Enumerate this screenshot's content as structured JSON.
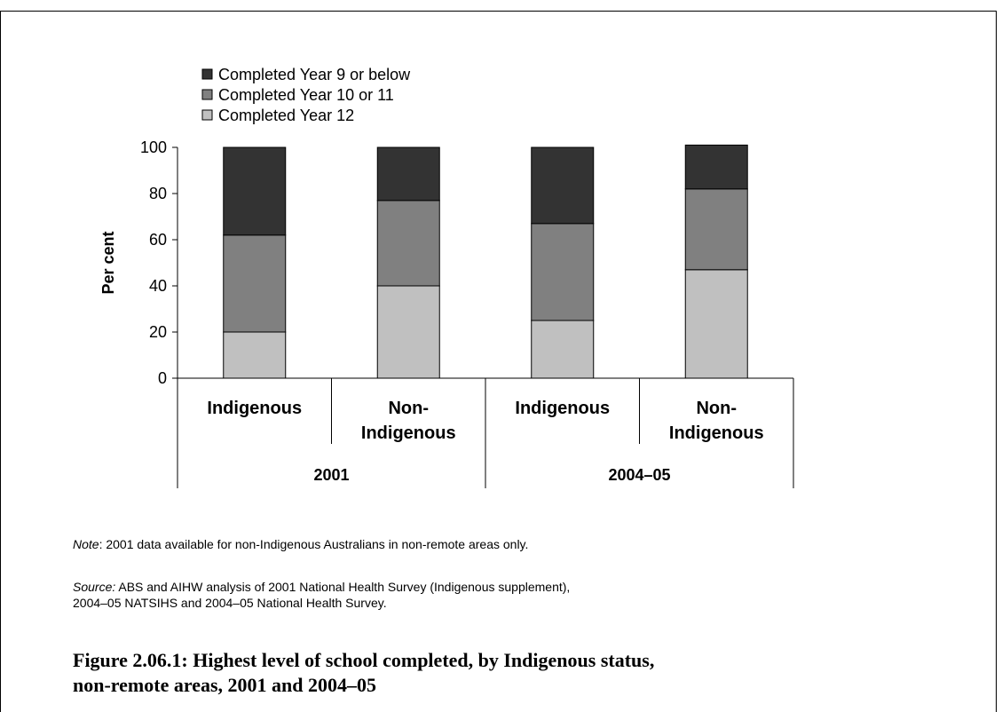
{
  "chart_data": {
    "type": "bar",
    "stacked": true,
    "ylabel": "Per cent",
    "ylim": [
      0,
      100
    ],
    "yticks": [
      0,
      20,
      40,
      60,
      80,
      100
    ],
    "categories": [
      {
        "label": "Indigenous",
        "group": "2001"
      },
      {
        "label": "Non-\nIndigenous",
        "group": "2001"
      },
      {
        "label": "Indigenous",
        "group": "2004–05"
      },
      {
        "label": "Non-\nIndigenous",
        "group": "2004–05"
      }
    ],
    "groups": [
      "2001",
      "2004–05"
    ],
    "series": [
      {
        "name": "Completed Year 12",
        "color": "#c0c0c0",
        "values": [
          20,
          40,
          25,
          47
        ]
      },
      {
        "name": "Completed Year 10 or 11",
        "color": "#808080",
        "values": [
          42,
          37,
          42,
          35
        ]
      },
      {
        "name": "Completed Year 9 or below",
        "color": "#333333",
        "values": [
          38,
          23,
          33,
          19
        ]
      }
    ],
    "legend_order": [
      "Completed Year 9 or below",
      "Completed Year 10 or 11",
      "Completed Year 12"
    ],
    "legend_position": "top-left",
    "grid": false
  },
  "note": {
    "label": "Note",
    "text": ": 2001 data available for non-Indigenous Australians in non-remote areas only."
  },
  "source": {
    "label": "Source:",
    "text": " ABS and AIHW analysis of 2001 National Health Survey (Indigenous supplement),",
    "text2": "2004–05 NATSIHS and 2004–05 National Health Survey."
  },
  "caption": {
    "line1": "Figure 2.06.1: Highest level of school completed, by Indigenous status,",
    "line2": "non-remote areas, 2001 and 2004–05"
  }
}
